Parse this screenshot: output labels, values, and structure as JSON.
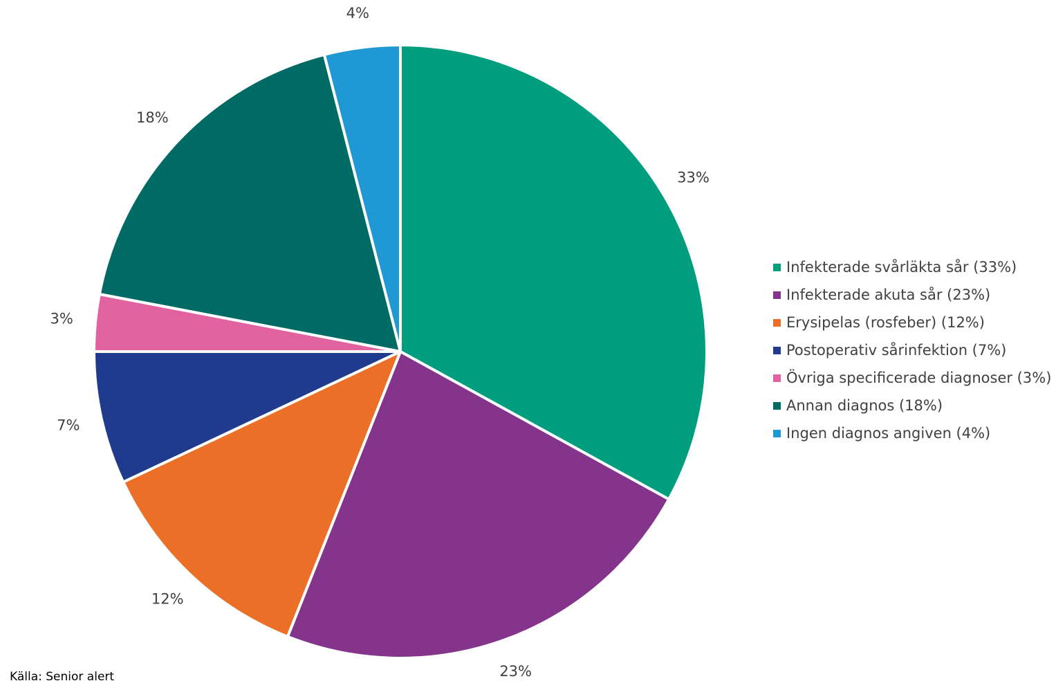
{
  "chart_data": {
    "type": "pie",
    "start_angle": "12 o'clock, clockwise",
    "slices": [
      {
        "label": "Infekterade svårläkta sår (33%)",
        "value": 33,
        "pct_label": "33%",
        "color": "#009E7F"
      },
      {
        "label": "Infekterade akuta sår (23%)",
        "value": 23,
        "pct_label": "23%",
        "color": "#84358B"
      },
      {
        "label": "Erysipelas (rosfeber) (12%)",
        "value": 12,
        "pct_label": "12%",
        "color": "#EC6F28"
      },
      {
        "label": "Postoperativ sårinfektion (7%)",
        "value": 7,
        "pct_label": "7%",
        "color": "#203B8D"
      },
      {
        "label": "Övriga specificerade diagnoser (3%)",
        "value": 3,
        "pct_label": "3%",
        "color": "#E2619F"
      },
      {
        "label": "Annan diagnos (18%)",
        "value": 18,
        "pct_label": "18%",
        "color": "#006B65"
      },
      {
        "label": "Ingen diagnos angiven (4%)",
        "value": 4,
        "pct_label": "4%",
        "color": "#1F98D4"
      }
    ],
    "legend_position": "right"
  },
  "source": "Källa: Senior alert"
}
